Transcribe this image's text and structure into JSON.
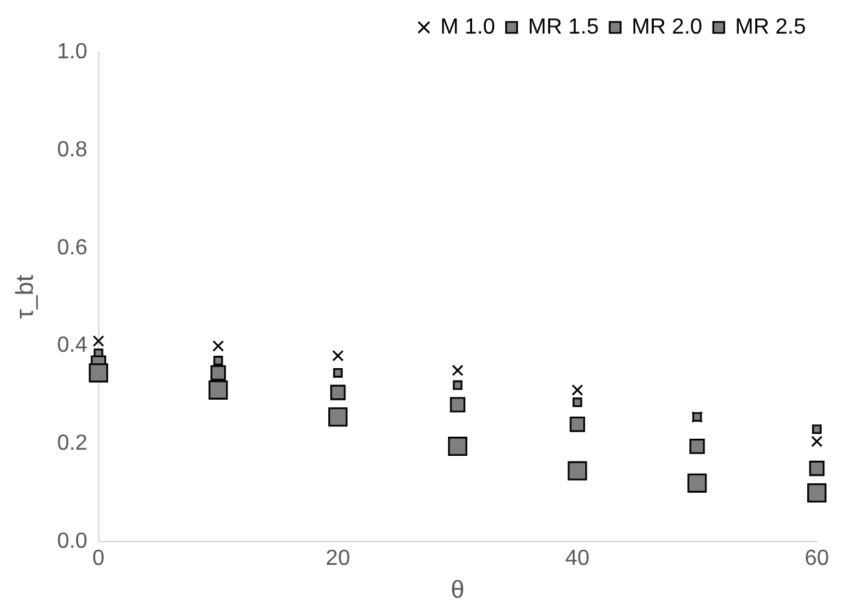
{
  "chart_data": {
    "type": "scatter",
    "xlabel": "θ",
    "ylabel": "τ_bt",
    "x": [
      0,
      10,
      20,
      30,
      40,
      50,
      60
    ],
    "xlim": [
      0,
      60
    ],
    "xticks": [
      0,
      20,
      40,
      60
    ],
    "ylim": [
      0,
      1
    ],
    "yticks": [
      {
        "value": 0,
        "label": "0.0"
      },
      {
        "value": 0.2,
        "label": "0.2"
      },
      {
        "value": 0.4,
        "label": "0.4"
      },
      {
        "value": 0.6,
        "label": "0.6"
      },
      {
        "value": 0.8,
        "label": "0.8"
      },
      {
        "value": 1,
        "label": "1.0"
      }
    ],
    "grid": false,
    "legend": "top right",
    "series": [
      {
        "name": "M 1.0",
        "color": "#000000",
        "marker": "cross",
        "values": [
          0.41,
          0.4,
          0.38,
          0.35,
          0.31,
          0.255,
          0.205
        ]
      },
      {
        "name": "MR 1.5",
        "color": "#7f7f7f",
        "marker": "square",
        "values": [
          0.385,
          0.37,
          0.345,
          0.32,
          0.285,
          0.255,
          0.23
        ]
      },
      {
        "name": "MR 2.0",
        "color": "#7f7f7f",
        "marker": "square",
        "values": [
          0.365,
          0.345,
          0.305,
          0.28,
          0.24,
          0.195,
          0.15
        ]
      },
      {
        "name": "MR 2.5",
        "color": "#7f7f7f",
        "marker": "square",
        "values": [
          0.345,
          0.31,
          0.255,
          0.195,
          0.145,
          0.12,
          0.1
        ]
      }
    ]
  }
}
